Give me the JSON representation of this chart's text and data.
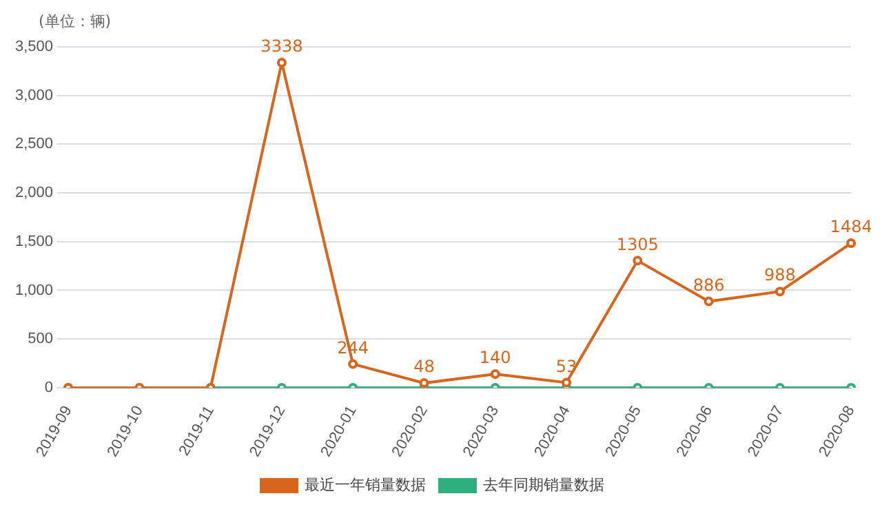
{
  "chart_data": {
    "type": "line",
    "annotations": [
      "(单位：辆)"
    ],
    "categories": [
      "2019-09",
      "2019-10",
      "2019-11",
      "2019-12",
      "2020-01",
      "2020-02",
      "2020-03",
      "2020-04",
      "2020-05",
      "2020-06",
      "2020-07",
      "2020-08"
    ],
    "series": [
      {
        "name": "最近一年销量数据",
        "color": "#d8651c",
        "values": [
          0,
          0,
          0,
          3338,
          244,
          48,
          140,
          53,
          1305,
          886,
          988,
          1484
        ],
        "value_labels": [
          null,
          null,
          null,
          "3338",
          "244",
          "48",
          "140",
          "53",
          "1305",
          "886",
          "988",
          "1484"
        ]
      },
      {
        "name": "去年同期销量数据",
        "color": "#2eaf7d",
        "values": [
          0,
          0,
          0,
          0,
          0,
          0,
          0,
          0,
          0,
          0,
          0,
          0
        ]
      }
    ],
    "ylim": [
      0,
      3500
    ],
    "yticks": [
      0,
      500,
      {
        "value": 1000,
        "label": "1,000"
      },
      {
        "value": 1500,
        "label": "1,500"
      },
      {
        "value": 2000,
        "label": "2,000"
      },
      {
        "value": 2500,
        "label": "2,500"
      },
      {
        "value": 3000,
        "label": "3,000"
      },
      {
        "value": 3500,
        "label": "3,500"
      }
    ],
    "grid": "y",
    "legend": "bottom",
    "marker": "circle"
  }
}
